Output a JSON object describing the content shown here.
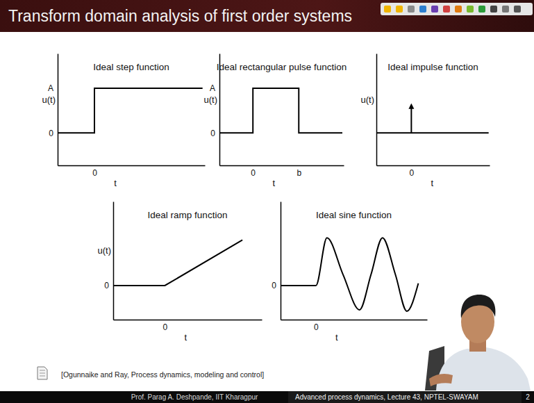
{
  "slide": {
    "title": "Transform domain analysis of first order systems",
    "reference": "[Ogunnaike and Ray, Process dynamics, modeling and control]",
    "footer_left": "Prof. Parag A. Deshpande, IIT Kharagpur",
    "footer_right": "Advanced process dynamics, Lecture 43, NPTEL-SWAYAM",
    "page": 2
  },
  "chart_data": [
    {
      "type": "line",
      "title": "Ideal step function",
      "xlabel": "t",
      "ylabel": "u(t)",
      "x": [
        -0.8,
        0,
        0,
        2.35
      ],
      "values": [
        0,
        0,
        1,
        1
      ],
      "xlim": [
        -0.8,
        2.4
      ],
      "ylim": [
        -0.73,
        1.78
      ],
      "xticks": [
        0
      ],
      "yticks": [
        0,
        {
          "value": 1,
          "label": "A"
        }
      ],
      "color": "#000000",
      "line_style": "solid"
    },
    {
      "type": "line",
      "title": "Ideal rectangular pulse function",
      "xlabel": "t",
      "ylabel": "u(t)",
      "x": [
        -0.73,
        0,
        0,
        1,
        1,
        1.95
      ],
      "values": [
        0,
        0,
        1,
        1,
        0,
        0
      ],
      "xlim": [
        -0.73,
        1.98
      ],
      "ylim": [
        -0.73,
        1.78
      ],
      "xticks": [
        0,
        {
          "value": 1,
          "label": "b"
        }
      ],
      "yticks": [
        0,
        {
          "value": 1,
          "label": "A"
        }
      ],
      "color": "#000000",
      "line_style": "solid"
    },
    {
      "type": "impulse",
      "title": "Ideal impulse function",
      "xlabel": "t",
      "ylabel": "u(t)",
      "x": [
        -0.76,
        1.68
      ],
      "values": [
        0,
        0
      ],
      "impulse": {
        "x": 0,
        "base": 0,
        "top": 0.6
      },
      "xlim": [
        -0.76,
        1.7
      ],
      "ylim": [
        -0.73,
        1.78
      ],
      "xticks": [
        0
      ],
      "yticks": [],
      "color": "#000000",
      "line_style": "solid"
    },
    {
      "type": "line",
      "title": "Ideal ramp function",
      "xlabel": "t",
      "ylabel": "u(t)",
      "x": [
        -1.12,
        0,
        1.68
      ],
      "values": [
        0,
        0,
        1.03
      ],
      "xlim": [
        -1.12,
        2.1
      ],
      "ylim": [
        -0.77,
        1.9
      ],
      "xticks": [
        0
      ],
      "yticks": [
        0
      ],
      "color": "#000000",
      "line_style": "solid"
    },
    {
      "type": "line",
      "title": "Ideal sine function",
      "xlabel": "t",
      "x": [
        -0.77,
        0,
        0.24,
        0.59,
        0.95,
        1.2,
        1.45,
        1.73,
        1.98,
        2.23
      ],
      "values": [
        0,
        0,
        1.08,
        0.25,
        -0.55,
        0.25,
        1.08,
        0.25,
        -0.58,
        0.05
      ],
      "xlim": [
        -0.77,
        2.42
      ],
      "ylim": [
        -0.77,
        1.9
      ],
      "xticks": [
        0
      ],
      "yticks": [
        0
      ],
      "color": "#000000",
      "line_style": "smooth"
    }
  ]
}
